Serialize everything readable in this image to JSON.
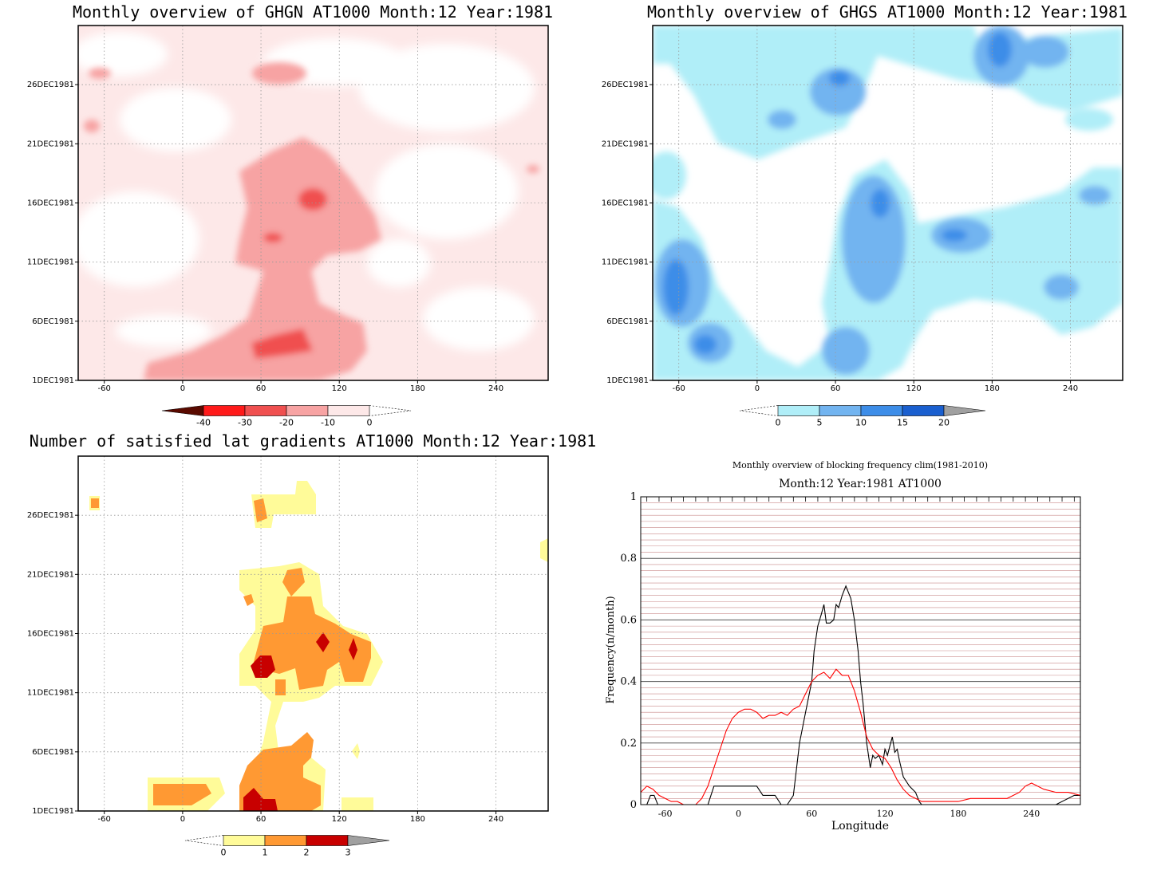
{
  "chart_data": [
    {
      "type": "heatmap",
      "title": "Monthly overview of GHGN AT1000 Month:12 Year:1981",
      "x_ticks": [
        "-60",
        "0",
        "60",
        "120",
        "180",
        "240"
      ],
      "y_ticks": [
        "1DEC1981",
        "6DEC1981",
        "11DEC1981",
        "16DEC1981",
        "21DEC1981",
        "26DEC1981"
      ],
      "xlim": [
        -80,
        280
      ],
      "ylim": [
        1,
        31
      ],
      "colorbar": {
        "labels": [
          "-40",
          "-30",
          "-20",
          "-10",
          "0"
        ],
        "colors": [
          "#5a0a00",
          "#ff1a1a",
          "#f05050",
          "#f7a3a3",
          "#fde8e8"
        ]
      }
    },
    {
      "type": "heatmap",
      "title": "Monthly overview of GHGS AT1000 Month:12 Year:1981",
      "x_ticks": [
        "-60",
        "0",
        "60",
        "120",
        "180",
        "240"
      ],
      "y_ticks": [
        "1DEC1981",
        "6DEC1981",
        "11DEC1981",
        "16DEC1981",
        "21DEC1981",
        "26DEC1981"
      ],
      "xlim": [
        -80,
        280
      ],
      "ylim": [
        1,
        31
      ],
      "colorbar": {
        "labels": [
          "0",
          "5",
          "10",
          "15",
          "20"
        ],
        "colors": [
          "#b0eef8",
          "#72b4f0",
          "#3d8de8",
          "#1a5fcf",
          "#a0a0a0"
        ]
      }
    },
    {
      "type": "heatmap",
      "title": "Number of satisfied lat gradients AT1000 Month:12 Year:1981",
      "x_ticks": [
        "-60",
        "0",
        "60",
        "120",
        "180",
        "240"
      ],
      "y_ticks": [
        "1DEC1981",
        "6DEC1981",
        "11DEC1981",
        "16DEC1981",
        "21DEC1981",
        "26DEC1981"
      ],
      "xlim": [
        -80,
        280
      ],
      "ylim": [
        1,
        31
      ],
      "colorbar": {
        "labels": [
          "0",
          "1",
          "2",
          "3"
        ],
        "colors": [
          "#fffb99",
          "#ff9933",
          "#c80000",
          "#a0a0a0"
        ]
      }
    },
    {
      "type": "line",
      "title": "Monthly overview of blocking frequency clim(1981-2010)",
      "subtitle": "Month:12 Year:1981  AT1000",
      "xlabel": "Longitude",
      "ylabel": "Frequency(n/month)",
      "xlim": [
        -80,
        280
      ],
      "ylim": [
        0,
        1
      ],
      "x_ticks": [
        "-60",
        "0",
        "60",
        "120",
        "180",
        "240"
      ],
      "y_ticks": [
        "0",
        "0.2",
        "0.4",
        "0.6",
        "0.8",
        "1"
      ],
      "series": [
        {
          "color": "#000000",
          "x": [
            -80,
            -75,
            -72,
            -69,
            -66,
            -60,
            -40,
            -30,
            -25,
            -20,
            -15,
            -10,
            -5,
            0,
            5,
            10,
            15,
            20,
            25,
            30,
            35,
            40,
            45,
            50,
            55,
            60,
            62,
            65,
            68,
            70,
            72,
            75,
            78,
            80,
            82,
            85,
            88,
            90,
            92,
            95,
            98,
            100,
            102,
            105,
            108,
            110,
            112,
            115,
            118,
            120,
            122,
            124,
            126,
            128,
            130,
            132,
            135,
            140,
            145,
            148,
            150,
            155,
            160,
            180,
            200,
            220,
            240,
            260,
            275,
            280
          ],
          "y": [
            0,
            0,
            0.03,
            0.03,
            0,
            0,
            0,
            0,
            0,
            0.06,
            0.06,
            0.06,
            0.06,
            0.06,
            0.06,
            0.06,
            0.06,
            0.03,
            0.03,
            0.03,
            0,
            0,
            0.03,
            0.2,
            0.3,
            0.4,
            0.5,
            0.58,
            0.62,
            0.65,
            0.59,
            0.59,
            0.6,
            0.65,
            0.64,
            0.68,
            0.71,
            0.69,
            0.67,
            0.6,
            0.5,
            0.4,
            0.33,
            0.2,
            0.12,
            0.16,
            0.15,
            0.16,
            0.13,
            0.18,
            0.16,
            0.19,
            0.22,
            0.17,
            0.18,
            0.14,
            0.09,
            0.06,
            0.04,
            0.01,
            0,
            0,
            0,
            0,
            0,
            0,
            0,
            0,
            0.03,
            0.03
          ]
        },
        {
          "color": "#ff0000",
          "x": [
            -80,
            -75,
            -70,
            -65,
            -60,
            -55,
            -50,
            -45,
            -40,
            -35,
            -30,
            -25,
            -20,
            -15,
            -10,
            -5,
            0,
            5,
            10,
            15,
            20,
            25,
            30,
            35,
            40,
            45,
            50,
            55,
            60,
            65,
            70,
            75,
            80,
            85,
            90,
            95,
            100,
            105,
            110,
            115,
            120,
            125,
            130,
            135,
            140,
            145,
            150,
            160,
            170,
            180,
            190,
            200,
            210,
            220,
            230,
            235,
            240,
            250,
            260,
            270,
            280
          ],
          "y": [
            0.04,
            0.06,
            0.05,
            0.03,
            0.02,
            0.01,
            0.01,
            0,
            0,
            0,
            0.02,
            0.06,
            0.12,
            0.18,
            0.24,
            0.28,
            0.3,
            0.31,
            0.31,
            0.3,
            0.28,
            0.29,
            0.29,
            0.3,
            0.29,
            0.31,
            0.32,
            0.36,
            0.4,
            0.42,
            0.43,
            0.41,
            0.44,
            0.42,
            0.42,
            0.37,
            0.3,
            0.22,
            0.18,
            0.16,
            0.15,
            0.12,
            0.08,
            0.05,
            0.03,
            0.02,
            0.01,
            0.01,
            0.01,
            0.01,
            0.02,
            0.02,
            0.02,
            0.02,
            0.04,
            0.06,
            0.07,
            0.05,
            0.04,
            0.04,
            0.03
          ]
        }
      ]
    }
  ]
}
